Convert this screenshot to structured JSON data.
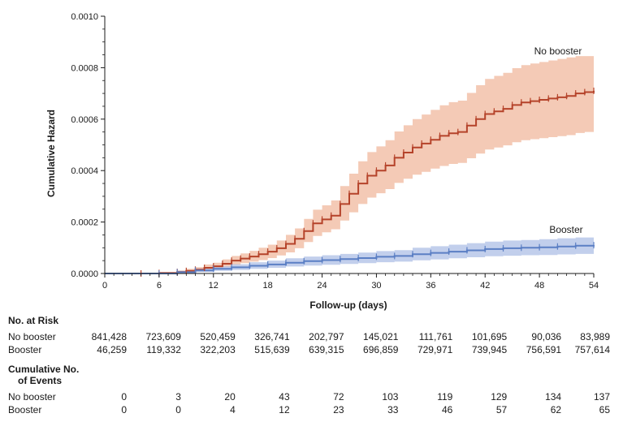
{
  "chart_data": {
    "type": "line",
    "title": "",
    "xlabel": "Follow-up (days)",
    "ylabel": "Cumulative Hazard",
    "xlim": [
      0,
      54
    ],
    "ylim": [
      0,
      0.001
    ],
    "x_ticks": [
      0,
      6,
      12,
      18,
      24,
      30,
      36,
      42,
      48,
      54
    ],
    "y_ticks": [
      "0.0000",
      "0.0002",
      "0.0004",
      "0.0006",
      "0.0008",
      "0.0010"
    ],
    "grid": false,
    "series": [
      {
        "name": "No booster",
        "color": "#b5432a",
        "band_color": "#f0b89e",
        "x": [
          0,
          4,
          6,
          8,
          9,
          10,
          11,
          12,
          13,
          14,
          15,
          16,
          17,
          18,
          19,
          20,
          21,
          22,
          23,
          24,
          25,
          26,
          27,
          28,
          29,
          30,
          31,
          32,
          33,
          34,
          35,
          36,
          37,
          38,
          39,
          40,
          41,
          42,
          43,
          44,
          45,
          46,
          47,
          48,
          49,
          50,
          51,
          52,
          53,
          54
        ],
        "y": [
          0,
          0,
          2e-06,
          6e-06,
          1e-05,
          1.5e-05,
          2.2e-05,
          2.8e-05,
          3.8e-05,
          5e-05,
          5.8e-05,
          6.6e-05,
          7.5e-05,
          8.5e-05,
          9.8e-05,
          0.000115,
          0.000135,
          0.000165,
          0.000195,
          0.00021,
          0.000225,
          0.00027,
          0.00031,
          0.00035,
          0.00038,
          0.0004,
          0.00042,
          0.00045,
          0.00047,
          0.00049,
          0.000505,
          0.00052,
          0.000535,
          0.000545,
          0.00055,
          0.000575,
          0.0006,
          0.00062,
          0.00063,
          0.00064,
          0.000655,
          0.000665,
          0.00067,
          0.000675,
          0.00068,
          0.000685,
          0.00069,
          0.0007,
          0.000705,
          0.00071
        ],
        "lower": [
          0,
          0,
          0,
          2e-06,
          4e-06,
          8e-06,
          1.2e-05,
          1.6e-05,
          2.4e-05,
          3.4e-05,
          4e-05,
          4.6e-05,
          5.2e-05,
          6e-05,
          7e-05,
          8.2e-05,
          9.8e-05,
          0.000122,
          0.000146,
          0.00016,
          0.000172,
          0.000206,
          0.000238,
          0.00027,
          0.000295,
          0.000312,
          0.000328,
          0.000352,
          0.000368,
          0.000384,
          0.000395,
          0.000408,
          0.000418,
          0.000426,
          0.00043,
          0.000448,
          0.000466,
          0.000482,
          0.00049,
          0.000498,
          0.00051,
          0.000518,
          0.000522,
          0.000526,
          0.00053,
          0.000534,
          0.000538,
          0.000546,
          0.00055,
          0.000575
        ],
        "upper": [
          0,
          0,
          5e-06,
          1.2e-05,
          1.8e-05,
          2.5e-05,
          3.5e-05,
          4.2e-05,
          5.5e-05,
          6.8e-05,
          7.8e-05,
          8.8e-05,
          0.0001,
          0.000112,
          0.000128,
          0.00015,
          0.000175,
          0.000212,
          0.000248,
          0.000265,
          0.000284,
          0.00034,
          0.000388,
          0.000436,
          0.000472,
          0.000494,
          0.000518,
          0.000552,
          0.000576,
          0.0006,
          0.000618,
          0.000636,
          0.000654,
          0.000666,
          0.000672,
          0.000702,
          0.000732,
          0.000756,
          0.000768,
          0.00078,
          0.000798,
          0.00081,
          0.000816,
          0.000822,
          0.000828,
          0.000834,
          0.00084,
          0.000845,
          0.000845,
          0.000845
        ]
      },
      {
        "name": "Booster",
        "color": "#5b7fc4",
        "band_color": "#aebfe6",
        "x": [
          0,
          6,
          8,
          10,
          12,
          14,
          16,
          18,
          20,
          22,
          24,
          26,
          28,
          30,
          32,
          34,
          36,
          38,
          40,
          42,
          44,
          46,
          48,
          50,
          52,
          54
        ],
        "y": [
          0,
          0,
          5e-06,
          1.2e-05,
          1.8e-05,
          2.4e-05,
          3e-05,
          3.5e-05,
          4.2e-05,
          4.8e-05,
          5.2e-05,
          5.6e-05,
          6e-05,
          6.5e-05,
          6.8e-05,
          7.5e-05,
          8e-05,
          8.5e-05,
          9e-05,
          9.5e-05,
          9.8e-05,
          0.0001,
          0.000102,
          0.000105,
          0.000108,
          0.00011
        ],
        "lower": [
          0,
          0,
          1e-06,
          6e-06,
          1e-05,
          1.4e-05,
          1.8e-05,
          2.2e-05,
          2.7e-05,
          3.1e-05,
          3.4e-05,
          3.7e-05,
          4e-05,
          4.4e-05,
          4.6e-05,
          5.1e-05,
          5.5e-05,
          5.9e-05,
          6.3e-05,
          6.7e-05,
          6.9e-05,
          7.1e-05,
          7.2e-05,
          7.4e-05,
          7.6e-05,
          7.8e-05
        ],
        "upper": [
          0,
          0,
          1e-05,
          2e-05,
          2.8e-05,
          3.6e-05,
          4.4e-05,
          5e-05,
          5.9e-05,
          6.6e-05,
          7.1e-05,
          7.6e-05,
          8.1e-05,
          8.7e-05,
          9.1e-05,
          0.0001,
          0.000106,
          0.000112,
          0.000118,
          0.000124,
          0.000128,
          0.00013,
          0.000133,
          0.000137,
          0.00014,
          0.000143
        ]
      }
    ],
    "annotations": [
      "No booster",
      "Booster"
    ]
  },
  "risk_table": {
    "title": "No. at Risk",
    "rows": [
      {
        "label": "No booster",
        "values": [
          "841,428",
          "723,609",
          "520,459",
          "326,741",
          "202,797",
          "145,021",
          "111,761",
          "101,695",
          "90,036",
          "83,989"
        ]
      },
      {
        "label": "Booster",
        "values": [
          "46,259",
          "119,332",
          "322,203",
          "515,639",
          "639,315",
          "696,859",
          "729,971",
          "739,945",
          "756,591",
          "757,614"
        ]
      }
    ]
  },
  "events_table": {
    "title_line1": "Cumulative No.",
    "title_line2": "of Events",
    "rows": [
      {
        "label": "No booster",
        "values": [
          "0",
          "3",
          "20",
          "43",
          "72",
          "103",
          "119",
          "129",
          "134",
          "137"
        ]
      },
      {
        "label": "Booster",
        "values": [
          "0",
          "0",
          "4",
          "12",
          "23",
          "33",
          "46",
          "57",
          "62",
          "65"
        ]
      }
    ]
  }
}
